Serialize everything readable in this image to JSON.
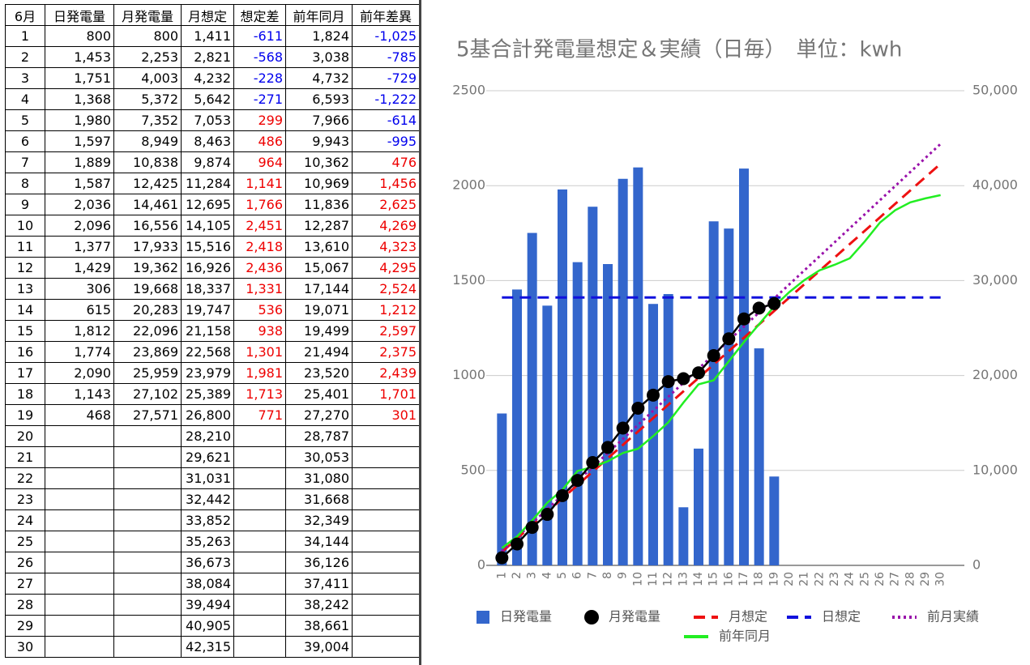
{
  "table": {
    "header": [
      "6月",
      "日発電量",
      "月発電量",
      "月想定",
      "想定差",
      "前年同月",
      "前年差異"
    ],
    "rows": [
      [
        "1",
        "800",
        "800",
        "1,411",
        "-611",
        "1,824",
        "-1,025"
      ],
      [
        "2",
        "1,453",
        "2,253",
        "2,821",
        "-568",
        "3,038",
        "-785"
      ],
      [
        "3",
        "1,751",
        "4,003",
        "4,232",
        "-228",
        "4,732",
        "-729"
      ],
      [
        "4",
        "1,368",
        "5,372",
        "5,642",
        "-271",
        "6,593",
        "-1,222"
      ],
      [
        "5",
        "1,980",
        "7,352",
        "7,053",
        "299",
        "7,966",
        "-614"
      ],
      [
        "6",
        "1,597",
        "8,949",
        "8,463",
        "486",
        "9,943",
        "-995"
      ],
      [
        "7",
        "1,889",
        "10,838",
        "9,874",
        "964",
        "10,362",
        "476"
      ],
      [
        "8",
        "1,587",
        "12,425",
        "11,284",
        "1,141",
        "10,969",
        "1,456"
      ],
      [
        "9",
        "2,036",
        "14,461",
        "12,695",
        "1,766",
        "11,836",
        "2,625"
      ],
      [
        "10",
        "2,096",
        "16,556",
        "14,105",
        "2,451",
        "12,287",
        "4,269"
      ],
      [
        "11",
        "1,377",
        "17,933",
        "15,516",
        "2,418",
        "13,610",
        "4,323"
      ],
      [
        "12",
        "1,429",
        "19,362",
        "16,926",
        "2,436",
        "15,067",
        "4,295"
      ],
      [
        "13",
        "306",
        "19,668",
        "18,337",
        "1,331",
        "17,144",
        "2,524"
      ],
      [
        "14",
        "615",
        "20,283",
        "19,747",
        "536",
        "19,071",
        "1,212"
      ],
      [
        "15",
        "1,812",
        "22,096",
        "21,158",
        "938",
        "19,499",
        "2,597"
      ],
      [
        "16",
        "1,774",
        "23,869",
        "22,568",
        "1,301",
        "21,494",
        "2,375"
      ],
      [
        "17",
        "2,090",
        "25,959",
        "23,979",
        "1,981",
        "23,520",
        "2,439"
      ],
      [
        "18",
        "1,143",
        "27,102",
        "25,389",
        "1,713",
        "25,401",
        "1,701"
      ],
      [
        "19",
        "468",
        "27,571",
        "26,800",
        "771",
        "27,270",
        "301"
      ],
      [
        "20",
        null,
        null,
        "28,210",
        null,
        "28,787",
        null
      ],
      [
        "21",
        null,
        null,
        "29,621",
        null,
        "30,053",
        null
      ],
      [
        "22",
        null,
        null,
        "31,031",
        null,
        "31,080",
        null
      ],
      [
        "23",
        null,
        null,
        "32,442",
        null,
        "31,668",
        null
      ],
      [
        "24",
        null,
        null,
        "33,852",
        null,
        "32,349",
        null
      ],
      [
        "25",
        null,
        null,
        "35,263",
        null,
        "34,144",
        null
      ],
      [
        "26",
        null,
        null,
        "36,673",
        null,
        "36,126",
        null
      ],
      [
        "27",
        null,
        null,
        "38,084",
        null,
        "37,411",
        null
      ],
      [
        "28",
        null,
        null,
        "39,494",
        null,
        "38,242",
        null
      ],
      [
        "29",
        null,
        null,
        "40,905",
        null,
        "38,661",
        null
      ],
      [
        "30",
        null,
        null,
        "42,315",
        null,
        "39,004",
        null
      ]
    ]
  },
  "chart_data": {
    "type": "combo",
    "title": "5基合計発電量想定＆実績（日毎）　単位：kwh",
    "categories": [
      "1",
      "2",
      "3",
      "4",
      "5",
      "6",
      "7",
      "8",
      "9",
      "10",
      "11",
      "12",
      "13",
      "14",
      "15",
      "16",
      "17",
      "18",
      "19",
      "20",
      "21",
      "22",
      "23",
      "24",
      "25",
      "26",
      "27",
      "28",
      "29",
      "30"
    ],
    "ylim": [
      0,
      2500
    ],
    "yticks": [
      0,
      500,
      1000,
      1500,
      2000,
      2500
    ],
    "y2lim": [
      0,
      50000
    ],
    "y2ticks": [
      0,
      {
        "value": 10000,
        "label": "10,000"
      },
      {
        "value": 20000,
        "label": "20,000"
      },
      {
        "value": 30000,
        "label": "30,000"
      },
      {
        "value": 40000,
        "label": "40,000"
      },
      {
        "value": 50000,
        "label": "50,000"
      }
    ],
    "grid": true,
    "series": [
      {
        "name": "日発電量",
        "type": "bar",
        "color": "#3366cc",
        "values": [
          800,
          1453,
          1751,
          1368,
          1980,
          1597,
          1889,
          1587,
          2036,
          2096,
          1377,
          1429,
          306,
          615,
          1812,
          1774,
          2090,
          1143,
          468,
          null,
          null,
          null,
          null,
          null,
          null,
          null,
          null,
          null,
          null,
          null
        ]
      },
      {
        "name": "月発電量",
        "type": "line",
        "axis": "y2",
        "color": "#000000",
        "marker": true,
        "values": [
          800,
          2253,
          4003,
          5372,
          7352,
          8949,
          10838,
          12425,
          14461,
          16556,
          17933,
          19362,
          19668,
          20283,
          22096,
          23869,
          25959,
          27102,
          27571,
          null,
          null,
          null,
          null,
          null,
          null,
          null,
          null,
          null,
          null,
          null
        ]
      },
      {
        "name": "月想定",
        "type": "line",
        "axis": "y2",
        "color": "#ee1111",
        "dash": "dashed",
        "values": [
          1411,
          2821,
          4232,
          5642,
          7053,
          8463,
          9874,
          11284,
          12695,
          14105,
          15516,
          16926,
          18337,
          19747,
          21158,
          22568,
          23979,
          25389,
          26800,
          28210,
          29621,
          31031,
          32442,
          33852,
          35263,
          36673,
          38084,
          39494,
          40905,
          42315
        ]
      },
      {
        "name": "日想定",
        "type": "line",
        "color": "#1111dd",
        "dash": "dashed",
        "values": [
          1411,
          1411,
          1411,
          1411,
          1411,
          1411,
          1411,
          1411,
          1411,
          1411,
          1411,
          1411,
          1411,
          1411,
          1411,
          1411,
          1411,
          1411,
          1411,
          1411,
          1411,
          1411,
          1411,
          1411,
          1411,
          1411,
          1411,
          1411,
          1411,
          1411
        ]
      },
      {
        "name": "前月実績",
        "type": "line",
        "axis": "y2",
        "color": "#9911aa",
        "dash": "dotted",
        "values": [
          1480,
          2960,
          4440,
          5920,
          7400,
          8880,
          10360,
          11840,
          13320,
          14800,
          16280,
          17760,
          19240,
          20720,
          22200,
          23680,
          25160,
          26640,
          28120,
          29600,
          31080,
          32560,
          34040,
          35520,
          37000,
          38480,
          39960,
          41440,
          42920,
          44400
        ]
      },
      {
        "name": "前年同月",
        "type": "line",
        "axis": "y2",
        "color": "#22ee22",
        "values": [
          1824,
          3038,
          4732,
          6593,
          7966,
          9943,
          10362,
          10969,
          11836,
          12287,
          13610,
          15067,
          17144,
          19071,
          19499,
          21494,
          23520,
          25401,
          27270,
          28787,
          30053,
          31080,
          31668,
          32349,
          34144,
          36126,
          37411,
          38242,
          38661,
          39004
        ]
      }
    ]
  }
}
